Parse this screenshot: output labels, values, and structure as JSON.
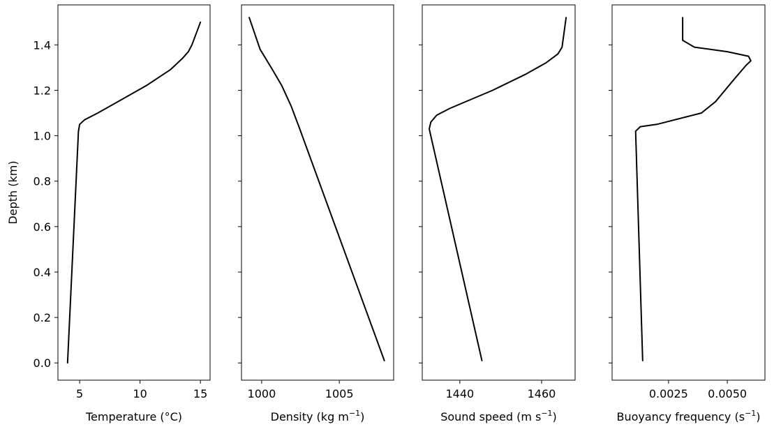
{
  "chart_data": [
    {
      "type": "line",
      "xlabel": "Temperature (°C)",
      "ylabel": "Depth (km)",
      "xlim": [
        3.2,
        15.8
      ],
      "ylim": [
        -0.076,
        1.576
      ],
      "xticks": [
        5,
        10,
        15
      ],
      "yticks": [
        0.0,
        0.2,
        0.4,
        0.6,
        0.8,
        1.0,
        1.2,
        1.4
      ],
      "show_yticklabels": true,
      "series": [
        {
          "x": [
            4.0,
            4.9,
            5.0,
            5.4,
            6.5,
            8.5,
            10.5,
            12.5,
            13.5,
            14.0,
            14.3,
            15.0
          ],
          "y": [
            0.0,
            1.02,
            1.05,
            1.07,
            1.1,
            1.16,
            1.22,
            1.29,
            1.34,
            1.37,
            1.4,
            1.5
          ]
        }
      ]
    },
    {
      "type": "line",
      "xlabel": "Density (kg m",
      "xlabel_sup": "−1",
      "xlabel_suffix": ")",
      "ylim": [
        -0.076,
        1.576
      ],
      "xlim": [
        998.7,
        1008.5
      ],
      "xticks": [
        1000,
        1005
      ],
      "yticks": [
        0.0,
        0.2,
        0.4,
        0.6,
        0.8,
        1.0,
        1.2,
        1.4
      ],
      "show_yticklabels": false,
      "series": [
        {
          "x": [
            999.2,
            999.9,
            1000.7,
            1001.3,
            1001.9,
            1002.4,
            1007.9
          ],
          "y": [
            1.52,
            1.38,
            1.29,
            1.22,
            1.13,
            1.04,
            0.01
          ]
        }
      ]
    },
    {
      "type": "line",
      "xlabel": "Sound speed (m s",
      "xlabel_sup": "−1",
      "xlabel_suffix": ")",
      "ylim": [
        -0.076,
        1.576
      ],
      "xlim": [
        1430.8,
        1468.2
      ],
      "xticks": [
        1440,
        1460
      ],
      "yticks": [
        0.0,
        0.2,
        0.4,
        0.6,
        0.8,
        1.0,
        1.2,
        1.4
      ],
      "show_yticklabels": false,
      "series": [
        {
          "x": [
            1445.4,
            1432.5,
            1432.9,
            1434.3,
            1437.5,
            1448.0,
            1456.0,
            1461.0,
            1464.0,
            1465.0,
            1466.0
          ],
          "y": [
            0.01,
            1.03,
            1.06,
            1.09,
            1.12,
            1.2,
            1.27,
            1.32,
            1.36,
            1.39,
            1.52
          ]
        }
      ]
    },
    {
      "type": "line",
      "xlabel": "Buoyancy frequency (s",
      "xlabel_sup": "−1",
      "xlabel_suffix": ")",
      "ylim": [
        -0.076,
        1.576
      ],
      "xlim": [
        0.0001,
        0.0066
      ],
      "xticks": [
        0.0025,
        0.005
      ],
      "xticklabels": [
        "0.0025",
        "0.0050"
      ],
      "yticks": [
        0.0,
        0.2,
        0.4,
        0.6,
        0.8,
        1.0,
        1.2,
        1.4
      ],
      "show_yticklabels": false,
      "series": [
        {
          "x": [
            0.0014,
            0.0011,
            0.0013,
            0.002,
            0.0039,
            0.0045,
            0.0053,
            0.0058,
            0.006,
            0.0059,
            0.005,
            0.0036,
            0.0031,
            0.0031
          ],
          "y": [
            0.01,
            1.02,
            1.04,
            1.05,
            1.1,
            1.15,
            1.25,
            1.31,
            1.33,
            1.35,
            1.37,
            1.39,
            1.42,
            1.52
          ]
        }
      ]
    }
  ]
}
